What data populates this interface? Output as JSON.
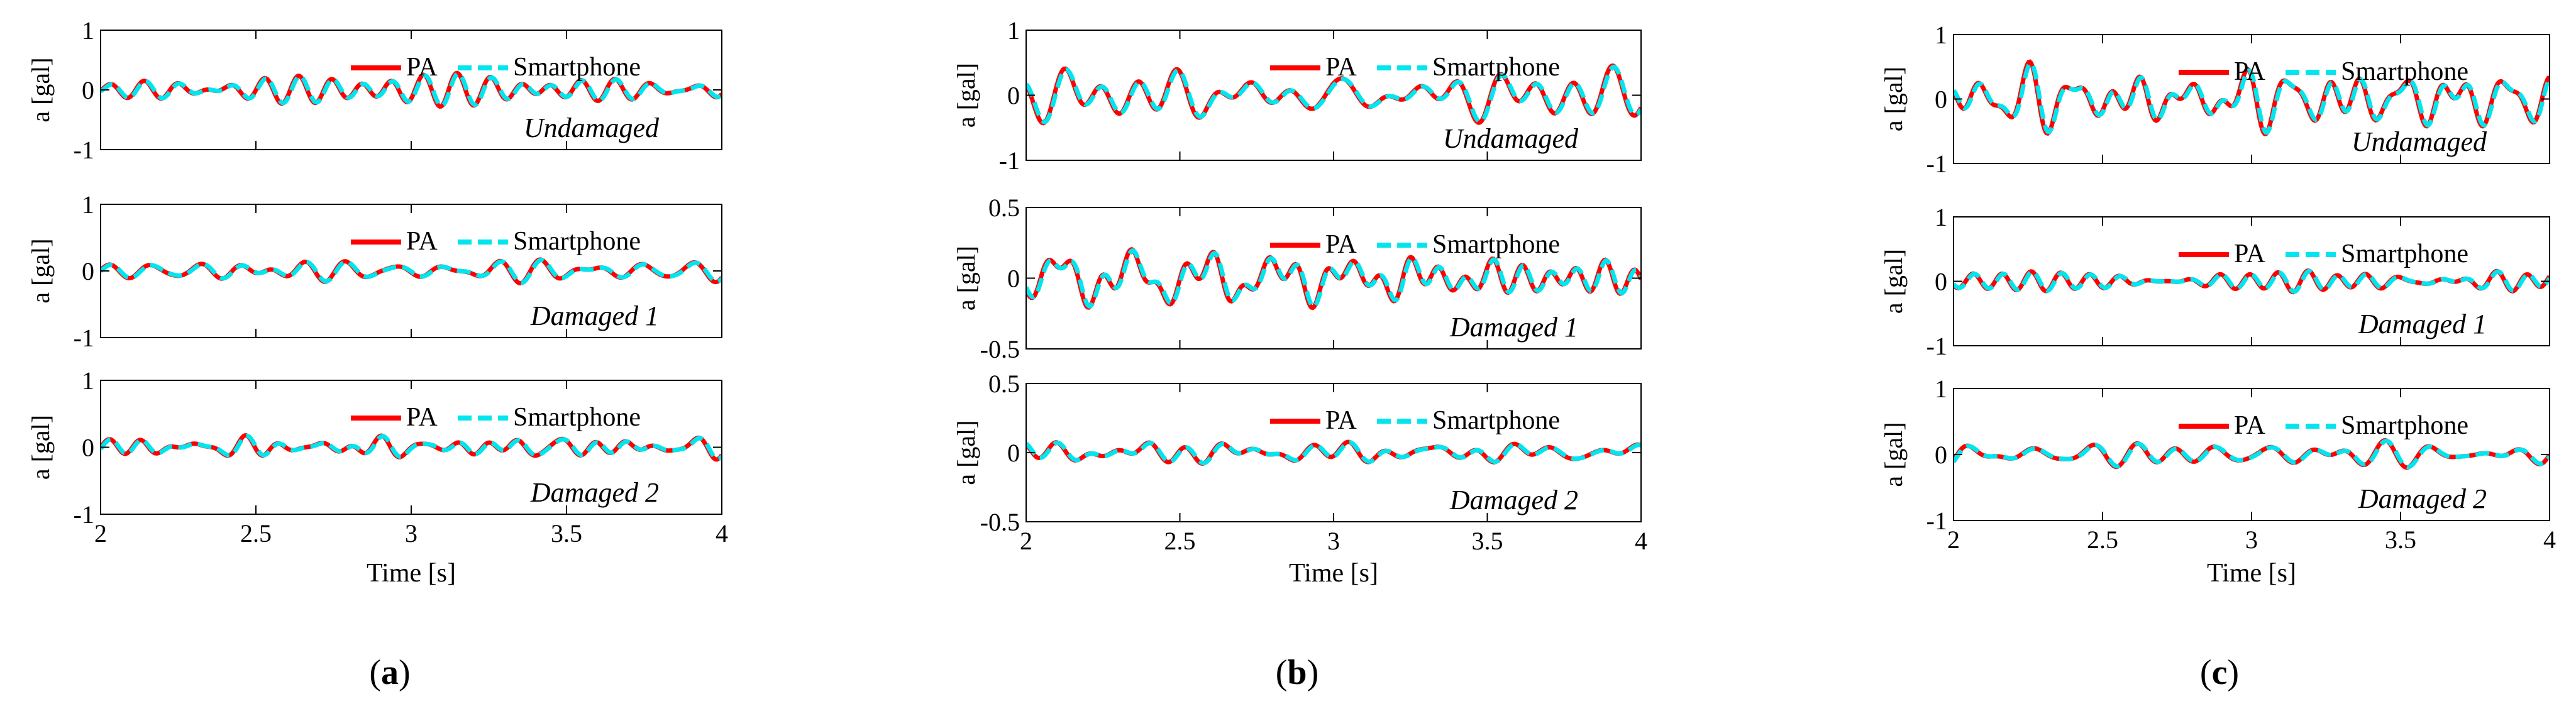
{
  "legend": {
    "pa_label": "PA",
    "smartphone_label": "Smartphone"
  },
  "colors": {
    "pa": "#ff0000",
    "smartphone": "#00e5ee",
    "axes": "#000000"
  },
  "chart_data": [
    {
      "type": "line",
      "caption_left": "(",
      "caption_letter": "a",
      "caption_right": ")",
      "xlabel": "Time [s]",
      "xlim": [
        2,
        4
      ],
      "xticks": [
        2,
        2.5,
        3,
        3.5,
        4
      ],
      "xtick_labels": [
        "2",
        "2.5",
        "3",
        "3.5",
        "4"
      ],
      "panels": [
        {
          "name": "undamaged",
          "title": "Undamaged",
          "ylabel": "a [gal]",
          "ylim": [
            -1,
            1
          ],
          "yticks": [
            -1,
            0,
            1
          ],
          "ytick_labels": [
            "-1",
            "0",
            "1"
          ],
          "amp": 0.18,
          "seed": 1
        },
        {
          "name": "damaged-1",
          "title": "Damaged 1",
          "ylabel": "a [gal]",
          "ylim": [
            -1,
            1
          ],
          "yticks": [
            -1,
            0,
            1
          ],
          "ytick_labels": [
            "-1",
            "0",
            "1"
          ],
          "amp": 0.12,
          "seed": 2
        },
        {
          "name": "damaged-2",
          "title": "Damaged 2",
          "ylabel": "a [gal]",
          "ylim": [
            -1,
            1
          ],
          "yticks": [
            -1,
            0,
            1
          ],
          "ytick_labels": [
            "-1",
            "0",
            "1"
          ],
          "amp": 0.12,
          "seed": 3
        }
      ]
    },
    {
      "type": "line",
      "caption_left": "(",
      "caption_letter": "b",
      "caption_right": ")",
      "xlabel": "Time [s]",
      "xlim": [
        2,
        4
      ],
      "xticks": [
        2,
        2.5,
        3,
        3.5,
        4
      ],
      "xtick_labels": [
        "2",
        "2.5",
        "3",
        "3.5",
        "4"
      ],
      "panels": [
        {
          "name": "undamaged",
          "title": "Undamaged",
          "ylabel": "a [gal]",
          "ylim": [
            -1,
            1
          ],
          "yticks": [
            -1,
            0,
            1
          ],
          "ytick_labels": [
            "-1",
            "0",
            "1"
          ],
          "amp": 0.3,
          "seed": 4
        },
        {
          "name": "damaged-1",
          "title": "Damaged 1",
          "ylabel": "a [gal]",
          "ylim": [
            -0.5,
            0.5
          ],
          "yticks": [
            -0.5,
            0,
            0.5
          ],
          "ytick_labels": [
            "-0.5",
            "0",
            "0.5"
          ],
          "amp": 0.15,
          "seed": 5
        },
        {
          "name": "damaged-2",
          "title": "Damaged 2",
          "ylabel": "a [gal]",
          "ylim": [
            -0.5,
            0.5
          ],
          "yticks": [
            -0.5,
            0,
            0.5
          ],
          "ytick_labels": [
            "-0.5",
            "0",
            "0.5"
          ],
          "amp": 0.06,
          "seed": 6
        }
      ]
    },
    {
      "type": "line",
      "caption_left": "(",
      "caption_letter": "c",
      "caption_right": ")",
      "xlabel": "Time [s]",
      "xlim": [
        2,
        4
      ],
      "xticks": [
        2,
        2.5,
        3,
        3.5,
        4
      ],
      "xtick_labels": [
        "2",
        "2.5",
        "3",
        "3.5",
        "4"
      ],
      "panels": [
        {
          "name": "undamaged",
          "title": "Undamaged",
          "ylabel": "a [gal]",
          "ylim": [
            -1,
            1
          ],
          "yticks": [
            -1,
            0,
            1
          ],
          "ytick_labels": [
            "-1",
            "0",
            "1"
          ],
          "amp": 0.38,
          "seed": 7
        },
        {
          "name": "damaged-1",
          "title": "Damaged 1",
          "ylabel": "a [gal]",
          "ylim": [
            -1,
            1
          ],
          "yticks": [
            -1,
            0,
            1
          ],
          "ytick_labels": [
            "-1",
            "0",
            "1"
          ],
          "amp": 0.2,
          "seed": 8
        },
        {
          "name": "damaged-2",
          "title": "Damaged 2",
          "ylabel": "a [gal]",
          "ylim": [
            -1,
            1
          ],
          "yticks": [
            -1,
            0,
            1
          ],
          "ytick_labels": [
            "-1",
            "0",
            "1"
          ],
          "amp": 0.15,
          "seed": 9
        }
      ]
    }
  ]
}
